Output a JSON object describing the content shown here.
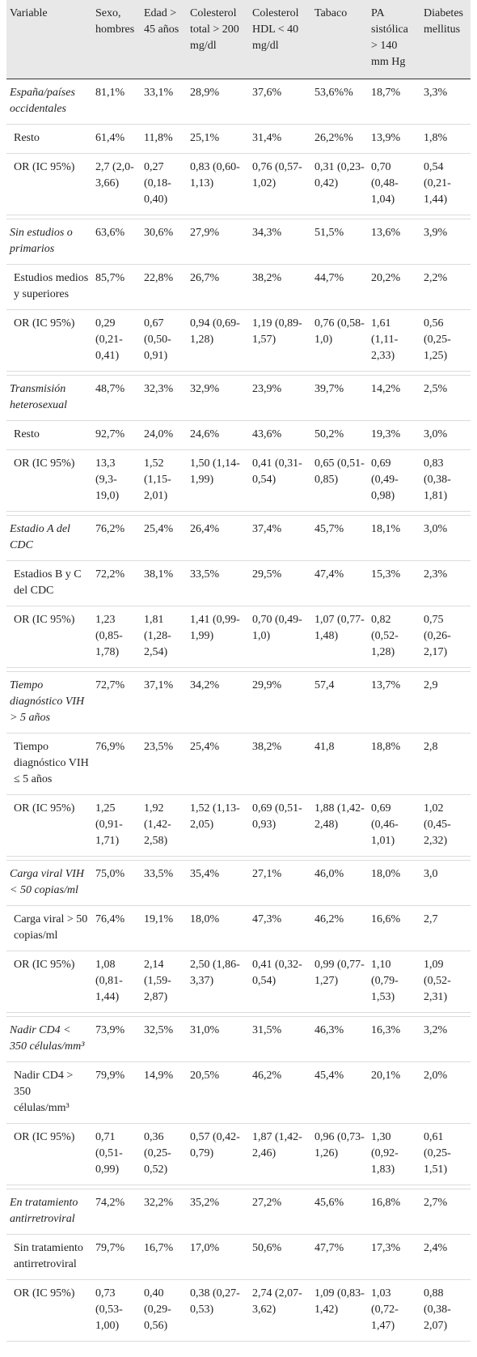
{
  "table": {
    "header": [
      "Variable",
      "Sexo, hombres",
      "Edad > 45 años",
      "Colesterol total > 200 mg/dl",
      "Colesterol HDL < 40 mg/dl",
      "Tabaco",
      "PA sistólica > 140 mm Hg",
      "Diabetes mellitus"
    ],
    "groups": [
      [
        [
          "España/países occidentales",
          "81,1%",
          "33,1%",
          "28,9%",
          "37,6%",
          "53,6%%",
          "18,7%",
          "3,3%"
        ],
        [
          "Resto",
          "61,4%",
          "11,8%",
          "25,1%",
          "31,4%",
          "26,2%%",
          "13,9%",
          "1,8%"
        ],
        [
          "OR (IC 95%)",
          "2,7 (2,0-3,66)",
          "0,27 (0,18-0,40)",
          "0,83 (0,60-1,13)",
          "0,76 (0,57-1,02)",
          "0,31 (0,23-0,42)",
          "0,70 (0,48-1,04)",
          "0,54 (0,21-1,44)"
        ]
      ],
      [
        [
          "Sin estudios o primarios",
          "63,6%",
          "30,6%",
          "27,9%",
          "34,3%",
          "51,5%",
          "13,6%",
          "3,9%"
        ],
        [
          "Estudios medios y superiores",
          "85,7%",
          "22,8%",
          "26,7%",
          "38,2%",
          "44,7%",
          "20,2%",
          "2,2%"
        ],
        [
          "OR (IC 95%)",
          "0,29 (0,21-0,41)",
          "0,67 (0,50-0,91)",
          "0,94 (0,69-1,28)",
          "1,19 (0,89-1,57)",
          "0,76 (0,58-1,0)",
          "1,61 (1,11-2,33)",
          "0,56 (0,25-1,25)"
        ]
      ],
      [
        [
          "Transmisión heterosexual",
          "48,7%",
          "32,3%",
          "32,9%",
          "23,9%",
          "39,7%",
          "14,2%",
          "2,5%"
        ],
        [
          "Resto",
          "92,7%",
          "24,0%",
          "24,6%",
          "43,6%",
          "50,2%",
          "19,3%",
          "3,0%"
        ],
        [
          "OR (IC 95%)",
          "13,3 (9,3-19,0)",
          "1,52 (1,15-2,01)",
          "1,50 (1,14-1,99)",
          "0,41 (0,31-0,54)",
          "0,65 (0,51-0,85)",
          "0,69 (0,49-0,98)",
          "0,83 (0,38-1,81)"
        ]
      ],
      [
        [
          "Estadio A del CDC",
          "76,2%",
          "25,4%",
          "26,4%",
          "37,4%",
          "45,7%",
          "18,1%",
          "3,0%"
        ],
        [
          "Estadios B y C del CDC",
          "72,2%",
          "38,1%",
          "33,5%",
          "29,5%",
          "47,4%",
          "15,3%",
          "2,3%"
        ],
        [
          "OR (IC 95%)",
          "1,23 (0,85-1,78)",
          "1,81 (1,28-2,54)",
          "1,41 (0,99-1,99)",
          "0,70 (0,49-1,0)",
          "1,07 (0,77-1,48)",
          "0,82 (0,52-1,28)",
          "0,75 (0,26-2,17)"
        ]
      ],
      [
        [
          "Tiempo diagnóstico VIH > 5 años",
          "72,7%",
          "37,1%",
          "34,2%",
          "29,9%",
          "57,4",
          "13,7%",
          "2,9"
        ],
        [
          "Tiempo diagnóstico VIH ≤ 5 años",
          "76,9%",
          "23,5%",
          "25,4%",
          "38,2%",
          "41,8",
          "18,8%",
          "2,8"
        ],
        [
          "OR (IC 95%)",
          "1,25 (0,91-1,71)",
          "1,92 (1,42-2,58)",
          "1,52 (1,13-2,05)",
          "0,69 (0,51-0,93)",
          "1,88 (1,42-2,48)",
          "0,69 (0,46-1,01)",
          "1,02 (0,45-2,32)"
        ]
      ],
      [
        [
          "Carga viral VIH < 50 copias/ml",
          "75,0%",
          "33,5%",
          "35,4%",
          "27,1%",
          "46,0%",
          "18,0%",
          "3,0"
        ],
        [
          "Carga viral > 50 copias/ml",
          "76,4%",
          "19,1%",
          "18,0%",
          "47,3%",
          "46,2%",
          "16,6%",
          "2,7"
        ],
        [
          "OR (IC 95%)",
          "1,08 (0,81-1,44)",
          "2,14 (1,59-2,87)",
          "2,50 (1,86-3,37)",
          "0,41 (0,32-0,54)",
          "0,99 (0,77-1,27)",
          "1,10 (0,79-1,53)",
          "1,09 (0,52-2,31)"
        ]
      ],
      [
        [
          "Nadir CD4 < 350 células/mm³",
          "73,9%",
          "32,5%",
          "31,0%",
          "31,5%",
          "46,3%",
          "16,3%",
          "3,2%"
        ],
        [
          "Nadir CD4 > 350 células/mm³",
          "79,9%",
          "14,9%",
          "20,5%",
          "46,2%",
          "45,4%",
          "20,1%",
          "2,0%"
        ],
        [
          "OR (IC 95%)",
          "0,71 (0,51-0,99)",
          "0,36 (0,25-0,52)",
          "0,57 (0,42-0,79)",
          "1,87 (1,42-2,46)",
          "0,96 (0,73-1,26)",
          "1,30 (0,92-1,83)",
          "0,61 (0,25-1,51)"
        ]
      ],
      [
        [
          "En tratamiento antirretroviral",
          "74,2%",
          "32,2%",
          "35,2%",
          "27,2%",
          "45,6%",
          "16,8%",
          "2,7%"
        ],
        [
          "Sin tratamiento antirretroviral",
          "79,7%",
          "16,7%",
          "17,0%",
          "50,6%",
          "47,7%",
          "17,3%",
          "2,4%"
        ],
        [
          "OR (IC 95%)",
          "0,73 (0,53-1,00)",
          "0,40 (0,29-0,56)",
          "0,38 (0,27-0,53)",
          "2,74 (2,07-3,62)",
          "1,09 (0,83-1,42)",
          "1,03 (0,72-1,47)",
          "0,88 (0,38-2,07)"
        ]
      ]
    ]
  }
}
